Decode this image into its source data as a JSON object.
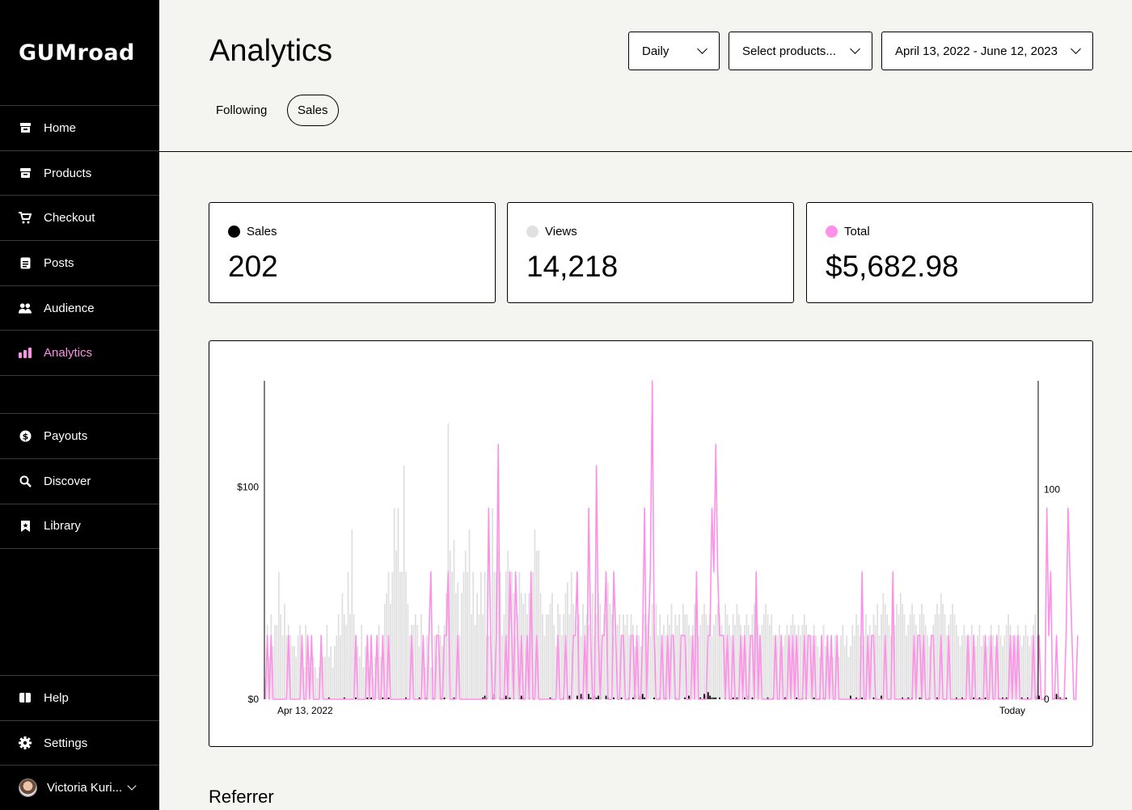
{
  "logo": "GUMroad",
  "sidebar": {
    "items": [
      {
        "label": "Home",
        "icon": "store-icon"
      },
      {
        "label": "Products",
        "icon": "archive-box-icon"
      },
      {
        "label": "Checkout",
        "icon": "cart-icon"
      },
      {
        "label": "Posts",
        "icon": "document-icon"
      },
      {
        "label": "Audience",
        "icon": "people-icon"
      },
      {
        "label": "Analytics",
        "icon": "bar-chart-icon"
      },
      {
        "label": "Payouts",
        "icon": "dollar-circle-icon"
      },
      {
        "label": "Discover",
        "icon": "search-icon"
      },
      {
        "label": "Library",
        "icon": "bookmark-icon"
      }
    ],
    "bottom": [
      {
        "label": "Help",
        "icon": "book-icon"
      },
      {
        "label": "Settings",
        "icon": "gear-icon"
      }
    ],
    "user": "Victoria Kuri..."
  },
  "header": {
    "title": "Analytics",
    "tabs": [
      "Following",
      "Sales"
    ],
    "period": "Daily",
    "products": "Select products...",
    "dates": "April 13, 2022 - June 12, 2023"
  },
  "stats": {
    "sales": {
      "label": "Sales",
      "value": "202",
      "color": "#000000"
    },
    "views": {
      "label": "Views",
      "value": "14,218",
      "color": "#e0e0e0"
    },
    "total": {
      "label": "Total",
      "value": "$5,682.98",
      "color": "#ff90e8"
    }
  },
  "chart_data": {
    "type": "line",
    "x_start_label": "Apr 13, 2022",
    "x_end_label": "Today",
    "y_left_ticks": [
      "$0",
      "$100"
    ],
    "y_right_ticks": [
      "0",
      "100"
    ],
    "y_left_max": 150,
    "y_right_max": 150,
    "colors": {
      "revenue": "#ff90e8",
      "views": "#e0e0e0",
      "sales": "#000000"
    },
    "series": [
      {
        "name": "Total",
        "values": [
          0,
          30,
          0,
          30,
          0,
          0,
          0,
          0,
          0,
          0,
          0,
          0,
          30,
          0,
          0,
          0,
          0,
          0,
          0,
          30,
          0,
          0,
          30,
          0,
          30,
          0,
          0,
          0,
          0,
          30,
          0,
          0,
          0,
          0,
          0,
          0,
          0,
          0,
          0,
          0,
          0,
          0,
          0,
          0,
          0,
          0,
          0,
          30,
          0,
          0,
          0,
          0,
          0,
          30,
          0,
          30,
          0,
          0,
          30,
          0,
          0,
          30,
          0,
          0,
          30,
          0,
          0,
          0,
          0,
          0,
          0,
          0,
          0,
          0,
          0,
          0,
          30,
          0,
          0,
          0,
          0,
          0,
          30,
          0,
          0,
          30,
          60,
          0,
          0,
          30,
          30,
          0,
          0,
          30,
          30,
          60,
          0,
          0,
          0,
          0,
          30,
          0,
          0,
          0,
          0,
          0,
          0,
          0,
          0,
          0,
          0,
          0,
          0,
          0,
          0,
          0,
          90,
          30,
          0,
          0,
          30,
          120,
          0,
          0,
          0,
          30,
          0,
          60,
          30,
          0,
          60,
          30,
          0,
          30,
          0,
          0,
          30,
          0,
          60,
          0,
          0,
          30,
          0,
          0,
          0,
          0,
          0,
          0,
          0,
          0,
          0,
          0,
          30,
          0,
          0,
          0,
          30,
          0,
          0,
          0,
          30,
          30,
          60,
          0,
          0,
          0,
          30,
          0,
          90,
          30,
          0,
          0,
          110,
          30,
          0,
          30,
          30,
          60,
          0,
          0,
          0,
          60,
          30,
          0,
          0,
          30,
          30,
          0,
          0,
          0,
          30,
          30,
          0,
          30,
          0,
          0,
          30,
          90,
          0,
          30,
          60,
          150,
          30,
          0,
          0,
          0,
          30,
          0,
          0,
          30,
          0,
          30,
          30,
          0,
          0,
          0,
          30,
          30,
          30,
          0,
          0,
          0,
          30,
          0,
          60,
          0,
          0,
          0,
          0,
          0,
          30,
          30,
          90,
          60,
          120,
          60,
          30,
          30,
          30,
          0,
          30,
          0,
          0,
          30,
          0,
          0,
          0,
          30,
          0,
          30,
          0,
          0,
          30,
          30,
          0,
          60,
          0,
          30,
          0,
          0,
          0,
          0,
          0,
          0,
          0,
          30,
          0,
          0,
          30,
          0,
          0,
          0,
          30,
          0,
          30,
          0,
          30,
          0,
          0,
          0,
          30,
          0,
          30,
          30,
          0,
          30,
          0,
          0,
          0,
          30,
          0,
          0,
          30,
          0,
          30,
          0,
          0,
          30,
          0,
          0,
          0,
          0,
          0,
          0,
          0,
          0,
          0,
          0,
          0,
          0,
          60,
          0,
          0,
          30,
          0,
          30,
          30,
          0,
          0,
          0,
          0,
          0,
          30,
          0,
          0,
          0,
          60,
          0,
          0,
          0,
          0,
          0,
          0,
          0,
          0,
          0,
          0,
          30,
          0,
          30,
          30,
          0,
          30,
          0,
          0,
          0,
          30,
          30,
          0,
          0,
          0,
          30,
          0,
          0,
          0,
          30,
          0,
          0,
          0,
          0,
          0,
          0,
          0,
          0,
          0,
          30,
          0,
          0,
          30,
          0,
          0,
          0,
          0,
          0,
          30,
          0,
          0,
          30,
          0,
          0,
          30,
          0,
          0,
          0,
          0,
          0,
          0,
          30,
          0,
          30,
          0,
          30,
          0,
          0,
          0,
          0,
          0,
          0,
          0,
          30,
          0,
          0,
          30,
          0,
          0,
          0,
          90,
          30,
          60,
          0,
          0,
          30,
          0,
          0,
          0,
          0,
          30,
          90,
          60,
          30,
          0,
          0,
          30
        ]
      },
      {
        "name": "Views",
        "values": [
          10,
          35,
          20,
          40,
          25,
          35,
          35,
          60,
          40,
          30,
          45,
          30,
          35,
          30,
          25,
          25,
          20,
          30,
          35,
          30,
          15,
          35,
          15,
          20,
          15,
          20,
          15,
          10,
          15,
          30,
          20,
          20,
          35,
          20,
          25,
          15,
          25,
          30,
          40,
          30,
          50,
          40,
          35,
          60,
          40,
          80,
          40,
          30,
          25,
          20,
          35,
          15,
          25,
          20,
          15,
          30,
          10,
          20,
          30,
          35,
          20,
          30,
          45,
          50,
          60,
          45,
          60,
          90,
          70,
          90,
          60,
          60,
          110,
          60,
          45,
          30,
          35,
          35,
          40,
          35,
          25,
          40,
          20,
          15,
          30,
          20,
          15,
          15,
          30,
          20,
          35,
          30,
          25,
          35,
          50,
          130,
          70,
          60,
          75,
          50,
          55,
          30,
          50,
          60,
          70,
          60,
          80,
          40,
          60,
          35,
          50,
          40,
          60,
          40,
          60,
          30,
          30,
          30,
          90,
          60,
          60,
          70,
          60,
          30,
          40,
          60,
          70,
          60,
          60,
          50,
          30,
          40,
          60,
          50,
          45,
          50,
          40,
          50,
          60,
          60,
          80,
          70,
          70,
          50,
          40,
          30,
          40,
          40,
          45,
          50,
          35,
          25,
          45,
          40,
          30,
          40,
          50,
          55,
          40,
          60,
          45,
          30,
          35,
          40,
          30,
          45,
          35,
          40,
          35,
          40,
          50,
          30,
          40,
          50,
          45,
          30,
          40,
          40,
          55,
          45,
          40,
          30,
          35,
          35,
          40,
          30,
          40,
          35,
          40,
          30,
          40,
          35,
          25,
          35,
          30,
          25,
          30,
          40,
          35,
          40,
          30,
          45,
          35,
          45,
          30,
          40,
          25,
          35,
          30,
          40,
          35,
          45,
          30,
          40,
          35,
          40,
          30,
          45,
          40,
          40,
          35,
          30,
          35,
          45,
          40,
          30,
          35,
          40,
          45,
          40,
          35,
          40,
          30,
          35,
          40,
          45,
          40,
          35,
          30,
          45,
          40,
          35,
          30,
          40,
          35,
          45,
          40,
          35,
          30,
          35,
          40,
          35,
          30,
          40,
          45,
          40,
          35,
          30,
          35,
          40,
          45,
          40,
          35,
          40,
          30,
          25,
          30,
          35,
          30,
          25,
          30,
          35,
          30,
          35,
          40,
          35,
          30,
          35,
          30,
          35,
          40,
          35,
          30,
          25,
          30,
          35,
          30,
          25,
          20,
          30,
          35,
          25,
          30,
          20,
          25,
          20,
          30,
          25,
          20,
          30,
          35,
          25,
          30,
          20,
          25,
          35,
          30,
          40,
          35,
          30,
          25,
          30,
          40,
          30,
          35,
          30,
          40,
          35,
          45,
          30,
          40,
          50,
          45,
          40,
          35,
          30,
          40,
          35,
          45,
          40,
          50,
          45,
          40,
          30,
          35,
          40,
          45,
          40,
          35,
          30,
          40,
          45,
          40,
          35,
          30,
          25,
          30,
          35,
          40,
          45,
          40,
          50,
          45,
          40,
          30,
          35,
          40,
          45,
          40,
          35,
          30,
          25,
          30,
          35,
          30,
          25,
          30,
          35,
          30,
          25,
          30,
          35,
          25,
          30,
          20,
          25,
          30,
          35,
          30,
          25,
          30,
          35,
          30,
          25,
          30,
          35,
          40,
          35,
          30,
          25,
          30,
          35,
          30,
          25,
          30,
          35,
          30,
          25,
          30,
          35,
          40,
          30
        ]
      },
      {
        "name": "Sales",
        "values": [
          0,
          0,
          0,
          0,
          0,
          0,
          0,
          0,
          0,
          0,
          0,
          0,
          0,
          0,
          0,
          0,
          0,
          0,
          0,
          0,
          0,
          0,
          0,
          0,
          0,
          0,
          0,
          0,
          0,
          0,
          0,
          0,
          0,
          1,
          0,
          0,
          0,
          0,
          0,
          0,
          0,
          1,
          0,
          0,
          0,
          0,
          0,
          1,
          0,
          0,
          0,
          0,
          0,
          1,
          0,
          1,
          0,
          0,
          0,
          0,
          0,
          1,
          0,
          0,
          1,
          0,
          0,
          0,
          0,
          0,
          0,
          0,
          0,
          1,
          0,
          0,
          0,
          0,
          0,
          0,
          1,
          0,
          0,
          1,
          1,
          0,
          0,
          1,
          0,
          0,
          0,
          1,
          0,
          1,
          0,
          0,
          0,
          0,
          1,
          0,
          0,
          0,
          0,
          0,
          0,
          0,
          0,
          0,
          0,
          0,
          0,
          0,
          0,
          1,
          2,
          1,
          0,
          0,
          1,
          3,
          0,
          0,
          1,
          0,
          1,
          2,
          1,
          1,
          0,
          1,
          0,
          0,
          1,
          2,
          1,
          0,
          0,
          1,
          0,
          0,
          0,
          0,
          0,
          0,
          0,
          0,
          0,
          0,
          1,
          0,
          0,
          0,
          0,
          0,
          0,
          1,
          0,
          0,
          2,
          0,
          0,
          0,
          2,
          0,
          3,
          1,
          0,
          0,
          3,
          1,
          0,
          2,
          1,
          2,
          1,
          0,
          0,
          2,
          1,
          0,
          0,
          1,
          0,
          0,
          0,
          1,
          0,
          0,
          0,
          1,
          0,
          1,
          3,
          0,
          1,
          2,
          3,
          1,
          0,
          0,
          0,
          0,
          1,
          0,
          0,
          1,
          0,
          0,
          1,
          0,
          0,
          0,
          0,
          1,
          0,
          0,
          0,
          0,
          1,
          0,
          2,
          0,
          0,
          0,
          0,
          0,
          1,
          0,
          3,
          2,
          4,
          2,
          1,
          1,
          1,
          0,
          1,
          0,
          0,
          1,
          0,
          0,
          0,
          1,
          0,
          1,
          0,
          0,
          0,
          1,
          0,
          2,
          0,
          1,
          0,
          0,
          0,
          0,
          0,
          0,
          0,
          1,
          0,
          0,
          1,
          0,
          0,
          0,
          0,
          0,
          1,
          0,
          0,
          0,
          0,
          0,
          1,
          0,
          0,
          1,
          0,
          1,
          0,
          0,
          0,
          1,
          0,
          0,
          1,
          0,
          1,
          0,
          0,
          0,
          0,
          0,
          0,
          0,
          0,
          0,
          0,
          0,
          0,
          0,
          2,
          0,
          0,
          1,
          0,
          1,
          1,
          0,
          0,
          0,
          0,
          0,
          1,
          0,
          0,
          0,
          2,
          0,
          0,
          0,
          0,
          0,
          0,
          0,
          0,
          0,
          0,
          1,
          0,
          0,
          1,
          0,
          1,
          0,
          0,
          0,
          1,
          1,
          0,
          0,
          0,
          1,
          0,
          0,
          0,
          1,
          0,
          0,
          0,
          0,
          0,
          0,
          0,
          0,
          0,
          1,
          0,
          0,
          1,
          0,
          0,
          0,
          0,
          0,
          1,
          0,
          0,
          1,
          0,
          0,
          1,
          0,
          0,
          0,
          0,
          0,
          0,
          1,
          0,
          1,
          0,
          1,
          0,
          0,
          0,
          0,
          0,
          0,
          0,
          1,
          0,
          0,
          1,
          0,
          0,
          0,
          2,
          1,
          2,
          0,
          0,
          1,
          0,
          0,
          0,
          0,
          1,
          3,
          2,
          1,
          0,
          0,
          1
        ]
      }
    ]
  },
  "referrer": "Referrer"
}
